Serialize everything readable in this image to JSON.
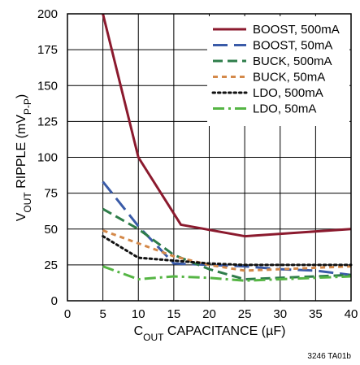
{
  "chart_data": {
    "type": "line",
    "xlabel_parts": [
      "C",
      "OUT",
      " CAPACITANCE (µF)"
    ],
    "ylabel_parts": [
      "V",
      "OUT",
      " RIPPLE (mV",
      "P-P",
      ")"
    ],
    "xlim": [
      0,
      40
    ],
    "ylim": [
      0,
      200
    ],
    "xticks": [
      0,
      5,
      10,
      15,
      20,
      25,
      30,
      35,
      40
    ],
    "yticks": [
      0,
      25,
      50,
      75,
      100,
      125,
      150,
      175,
      200
    ],
    "grid": true,
    "legend_position": "top-right",
    "footnote": "3246 TA01b",
    "series": [
      {
        "name": "BOOST, 500mA",
        "color": "#8b1a2e",
        "dash": "solid",
        "x": [
          5,
          10,
          16,
          25,
          40
        ],
        "y": [
          200,
          100,
          53,
          45,
          50
        ]
      },
      {
        "name": "BOOST, 50mA",
        "color": "#3a5ba8",
        "dash": "longdash",
        "x": [
          5,
          10,
          15,
          20,
          25,
          30,
          35,
          40
        ],
        "y": [
          83,
          52,
          26,
          25,
          24,
          22,
          21,
          18
        ]
      },
      {
        "name": "BUCK, 500mA",
        "color": "#2e7d4a",
        "dash": "dash",
        "x": [
          5,
          10,
          15,
          20,
          25,
          30,
          35,
          40
        ],
        "y": [
          64,
          50,
          32,
          22,
          15,
          16,
          17,
          18
        ]
      },
      {
        "name": "BUCK, 50mA",
        "color": "#d4894a",
        "dash": "shortdash",
        "x": [
          5,
          10,
          15,
          20,
          25,
          30,
          35,
          40
        ],
        "y": [
          49,
          40,
          31,
          25,
          21,
          22,
          23,
          24
        ]
      },
      {
        "name": "LDO, 500mA",
        "color": "#111111",
        "dash": "dot",
        "x": [
          5,
          10,
          15,
          20,
          25,
          30,
          35,
          40
        ],
        "y": [
          45,
          30,
          28,
          26,
          25,
          25,
          25,
          25
        ]
      },
      {
        "name": "LDO, 50mA",
        "color": "#55b544",
        "dash": "dashdot",
        "x": [
          5,
          10,
          15,
          20,
          25,
          30,
          35,
          40
        ],
        "y": [
          24,
          15,
          17,
          16,
          14,
          15,
          16,
          17
        ]
      }
    ]
  }
}
